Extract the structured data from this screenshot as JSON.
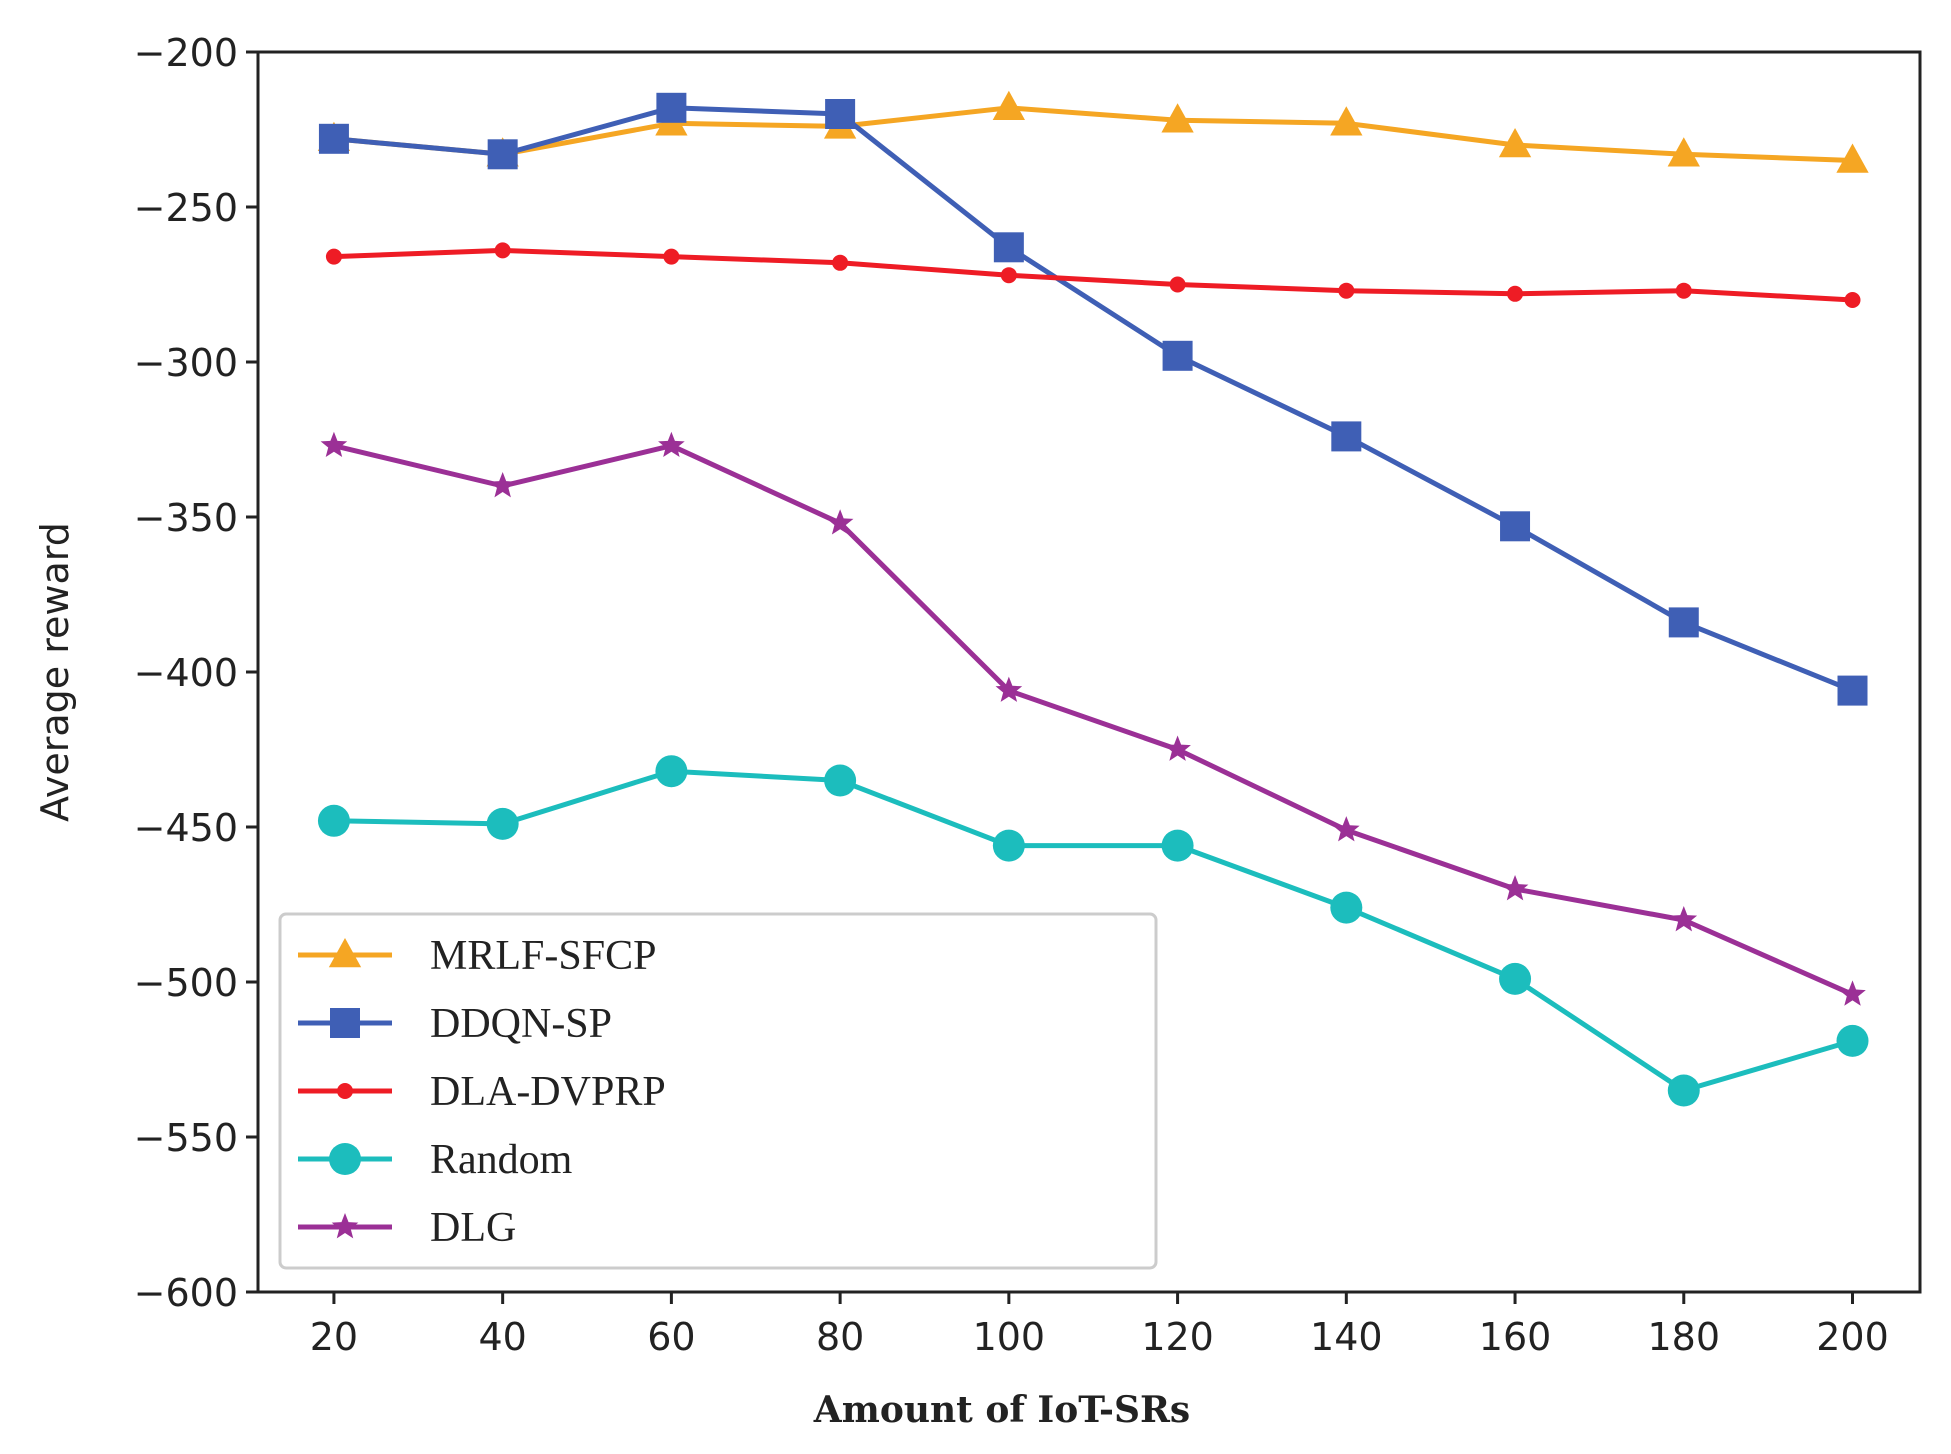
{
  "chart_data": {
    "type": "line",
    "title": "",
    "xlabel": "Amount of IoT-SRs",
    "ylabel": "Average reward",
    "x": [
      20,
      40,
      60,
      80,
      100,
      120,
      140,
      160,
      180,
      200
    ],
    "xticks": [
      20,
      40,
      60,
      80,
      100,
      120,
      140,
      160,
      180,
      200
    ],
    "xtick_labels": [
      "20",
      "40",
      "60",
      "80",
      "100",
      "120",
      "140",
      "160",
      "180",
      "200"
    ],
    "xlim": [
      11,
      208
    ],
    "ylim": [
      -600,
      -200
    ],
    "yticks": [
      -600,
      -550,
      -500,
      -450,
      -400,
      -350,
      -300,
      -250,
      -200
    ],
    "ytick_labels": [
      "−600",
      "−550",
      "−500",
      "−450",
      "−400",
      "−350",
      "−300",
      "−250",
      "−200"
    ],
    "grid": false,
    "legend_position": "lower-left",
    "series": [
      {
        "name": "MRLF-SFCP",
        "color": "#F5A623",
        "marker": "triangle",
        "values": [
          -228,
          -233,
          -223,
          -224,
          -218,
          -222,
          -223,
          -230,
          -233,
          -235
        ]
      },
      {
        "name": "DDQN-SP",
        "color": "#3F5FB5",
        "marker": "square",
        "values": [
          -228,
          -233,
          -218,
          -220,
          -263,
          -298,
          -324,
          -353,
          -384,
          -406
        ]
      },
      {
        "name": "DLA-DVPRP",
        "color": "#EE1C25",
        "marker": "dot",
        "values": [
          -266,
          -264,
          -266,
          -268,
          -272,
          -275,
          -277,
          -278,
          -277,
          -280
        ]
      },
      {
        "name": "Random",
        "color": "#1CBDBD",
        "marker": "circle",
        "values": [
          -448,
          -449,
          -432,
          -435,
          -456,
          -456,
          -476,
          -499,
          -535,
          -519
        ]
      },
      {
        "name": "DLG",
        "color": "#9B3096",
        "marker": "star",
        "values": [
          -327,
          -340,
          -327,
          -352,
          -406,
          -425,
          -451,
          -470,
          -480,
          -504
        ]
      }
    ]
  }
}
